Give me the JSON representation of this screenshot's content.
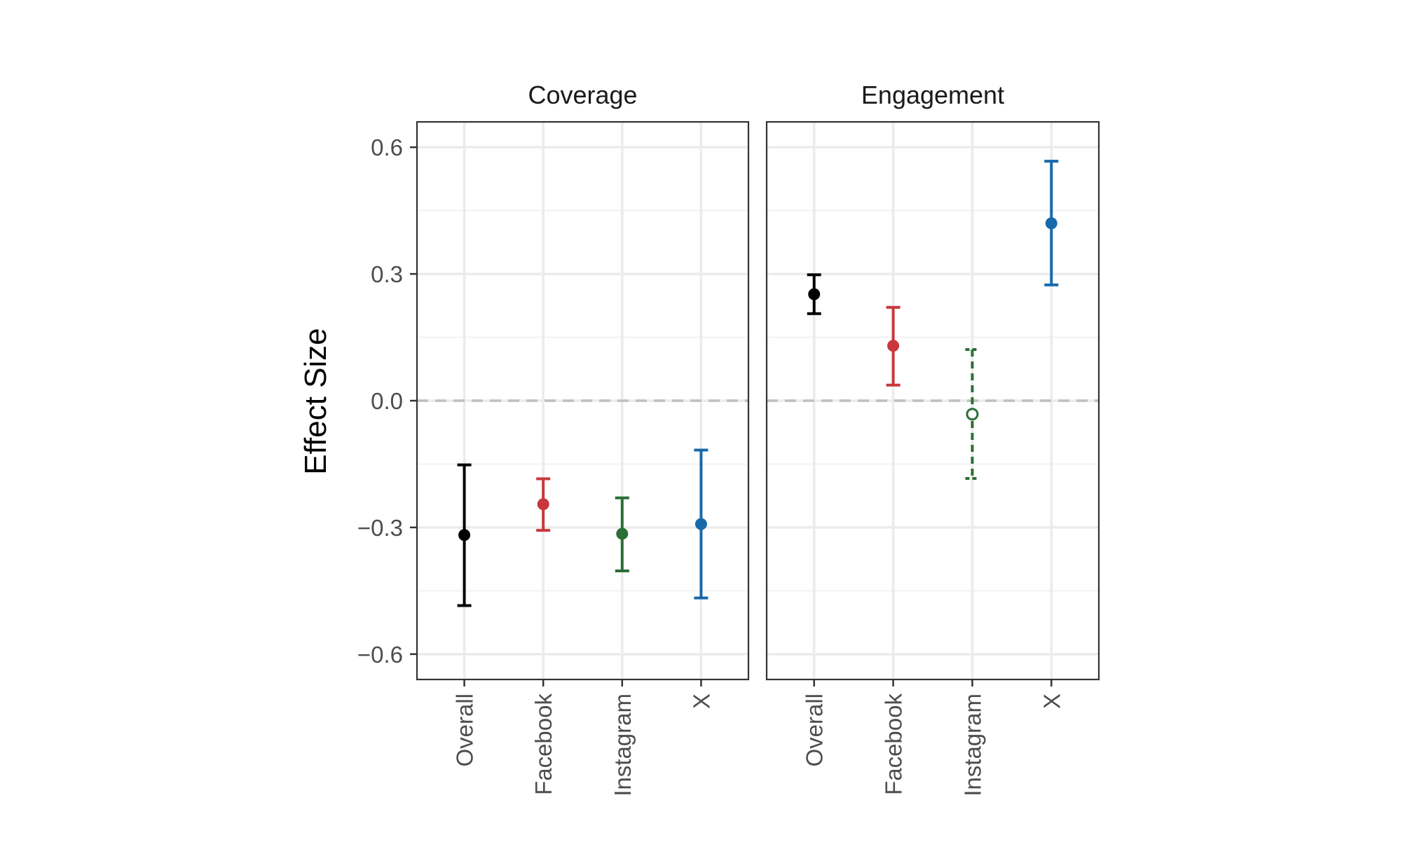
{
  "chart_data": {
    "type": "errorbar",
    "ylabel": "Effect Size",
    "ylim": [
      -0.66,
      0.66
    ],
    "yticks": [
      {
        "value": 0.6,
        "label": "0.6"
      },
      {
        "value": 0.3,
        "label": "0.3"
      },
      {
        "value": 0.0,
        "label": "0.0"
      },
      {
        "value": -0.3,
        "label": "−0.3"
      },
      {
        "value": -0.6,
        "label": "−0.6"
      }
    ],
    "categories": [
      "Overall",
      "Facebook",
      "Instagram",
      "X"
    ],
    "colors": {
      "Overall": "#000000",
      "Facebook": "#c8373b",
      "Instagram": "#2a6f35",
      "X": "#1769ab"
    },
    "reference_line": 0,
    "facets": [
      {
        "title": "Coverage",
        "points": [
          {
            "category": "Overall",
            "estimate": -0.318,
            "lower": -0.485,
            "upper": -0.152,
            "significant": true
          },
          {
            "category": "Facebook",
            "estimate": -0.245,
            "lower": -0.307,
            "upper": -0.185,
            "significant": true
          },
          {
            "category": "Instagram",
            "estimate": -0.315,
            "lower": -0.403,
            "upper": -0.23,
            "significant": true
          },
          {
            "category": "X",
            "estimate": -0.292,
            "lower": -0.467,
            "upper": -0.117,
            "significant": true
          }
        ]
      },
      {
        "title": "Engagement",
        "points": [
          {
            "category": "Overall",
            "estimate": 0.252,
            "lower": 0.206,
            "upper": 0.298,
            "significant": true
          },
          {
            "category": "Facebook",
            "estimate": 0.13,
            "lower": 0.037,
            "upper": 0.221,
            "significant": true
          },
          {
            "category": "Instagram",
            "estimate": -0.032,
            "lower": -0.184,
            "upper": 0.121,
            "significant": false
          },
          {
            "category": "X",
            "estimate": 0.42,
            "lower": 0.274,
            "upper": 0.567,
            "significant": true
          }
        ]
      }
    ]
  }
}
